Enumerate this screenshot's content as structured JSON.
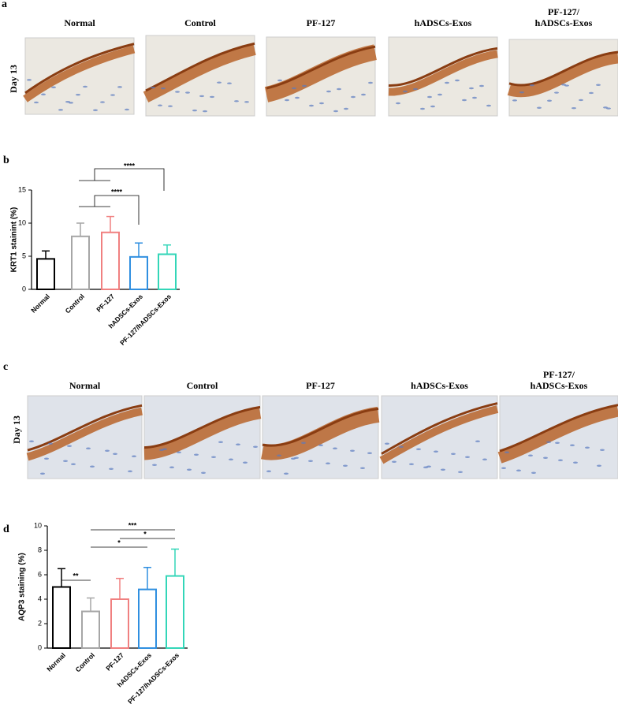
{
  "panel_a": {
    "label": "a",
    "row_label": "Day 13",
    "columns": [
      [
        "Normal"
      ],
      [
        "Control"
      ],
      [
        "PF-127"
      ],
      [
        "hADSCs-Exos"
      ],
      [
        "PF-127/",
        "hADSCs-Exos"
      ]
    ]
  },
  "panel_c": {
    "label": "c",
    "row_label": "Day 13",
    "columns": [
      [
        "Normal"
      ],
      [
        "Control"
      ],
      [
        "PF-127"
      ],
      [
        "hADSCs-Exos"
      ],
      [
        "PF-127/",
        "hADSCs-Exos"
      ]
    ]
  },
  "chart_data": [
    {
      "type": "bar",
      "panel_label": "b",
      "ylabel": "KRT1 stainint (%)",
      "categories": [
        "Normal",
        "Control",
        "PF-127",
        "hADSCs-Exos",
        "PF-127/hADSCs-Exos"
      ],
      "values": [
        4.6,
        8.0,
        8.6,
        4.9,
        5.3
      ],
      "errors": [
        1.2,
        2.0,
        2.4,
        2.1,
        1.4
      ],
      "colors": [
        "#000000",
        "#a6a6a6",
        "#f08080",
        "#2f8fe0",
        "#33d6b8"
      ],
      "ylim": [
        0,
        15
      ],
      "yticks": [
        0,
        5,
        10,
        15
      ],
      "significance": [
        "****",
        "****"
      ]
    },
    {
      "type": "bar",
      "panel_label": "d",
      "ylabel": "AQP3 staining (%)",
      "categories": [
        "Normal",
        "Control",
        "PF-127",
        "hADSCs-Exos",
        "PF-127/hADSCs-Exos"
      ],
      "values": [
        5.0,
        3.0,
        4.0,
        4.8,
        5.9
      ],
      "errors": [
        1.5,
        1.1,
        1.7,
        1.8,
        2.2
      ],
      "colors": [
        "#000000",
        "#a6a6a6",
        "#f08080",
        "#2f8fe0",
        "#33d6b8"
      ],
      "ylim": [
        0,
        10
      ],
      "yticks": [
        0,
        2,
        4,
        6,
        8,
        10
      ],
      "significance": [
        "**",
        "*",
        "*",
        "***"
      ]
    }
  ]
}
